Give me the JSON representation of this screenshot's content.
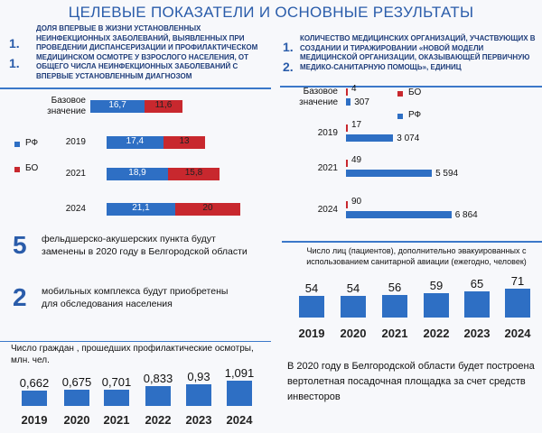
{
  "header": {
    "title": "ЦЕЛЕВЫЕ ПОКАЗАТЕЛИ И ОСНОВНЫЕ РЕЗУЛЬТАТЫ"
  },
  "chart_data": [
    {
      "type": "bar",
      "orientation": "horizontal",
      "stacked": true,
      "title": "ДОЛЯ ВПЕРВЫЕ В ЖИЗНИ УСТАНОВЛЕННЫХ НЕИНФЕКЦИОННЫХ ЗАБОЛЕВАНИЙ, ВЫЯВЛЕННЫХ ПРИ ПРОВЕДЕНИИ ДИСПАНСЕРИЗАЦИИ И ПРОФИЛАКТИЧЕСКОМ МЕДИЦИНСКОМ ОСМОТРЕ У ВЗРОСЛОГО НАСЕЛЕНИЯ, ОТ ОБЩЕГО ЧИСЛА НЕИНФЕКЦИОННЫХ ЗАБОЛЕВАНИЙ С ВПЕРВЫЕ УСТАНОВЛЕННЫМ ДИАГНОЗОМ",
      "numbers": [
        "1.",
        "1."
      ],
      "categories": [
        "Базовое значение",
        "2019",
        "2021",
        "2024"
      ],
      "series": [
        {
          "name": "РФ",
          "color": "#2e6fc4",
          "values": [
            16.7,
            17.4,
            18.9,
            21.1
          ],
          "value_labels": [
            "16,7",
            "17,4",
            "18,9",
            "21,1"
          ]
        },
        {
          "name": "БО",
          "color": "#c8282e",
          "values": [
            11.6,
            13,
            15.8,
            20
          ],
          "value_labels": [
            "11,6",
            "13",
            "15,8",
            "20"
          ]
        }
      ]
    },
    {
      "type": "bar",
      "orientation": "horizontal",
      "stacked": false,
      "title": "КОЛИЧЕСТВО МЕДИЦИНСКИХ ОРГАНИЗАЦИЙ, УЧАСТВУЮЩИХ В СОЗДАНИИ И ТИРАЖИРОВАНИИ «НОВОЙ МОДЕЛИ МЕДИЦИНСКОЙ ОРГАНИЗАЦИИ, ОКАЗЫВАЮЩЕЙ ПЕРВИЧНУЮ МЕДИКО-САНИТАРНУЮ ПОМОЩЬ», ЕДИНИЦ",
      "numbers": [
        "1.",
        "2."
      ],
      "categories": [
        "Базовое значение",
        "2019",
        "2021",
        "2024"
      ],
      "series": [
        {
          "name": "БО",
          "color": "#c8282e",
          "values": [
            4,
            17,
            49,
            90
          ]
        },
        {
          "name": "РФ",
          "color": "#2e6fc4",
          "values": [
            307,
            3074,
            5594,
            6864
          ],
          "value_labels": [
            "307",
            "3 074",
            "5 594",
            "6 864"
          ]
        }
      ]
    },
    {
      "type": "bar",
      "orientation": "vertical",
      "title": "Число граждан , прошедших профилактические осмотры, млн. чел.",
      "categories": [
        "2019",
        "2020",
        "2021",
        "2022",
        "2023",
        "2024"
      ],
      "values": [
        0.662,
        0.675,
        0.701,
        0.833,
        0.93,
        1.091
      ],
      "value_labels": [
        "0,662",
        "0,675",
        "0,701",
        "0,833",
        "0,93",
        "1,091"
      ],
      "color": "#2e6fc4"
    },
    {
      "type": "bar",
      "orientation": "vertical",
      "title": "Число лиц (пациентов), дополнительно эвакуированных с использованием санитарной авиации (ежегодно, человек)",
      "categories": [
        "2019",
        "2020",
        "2021",
        "2022",
        "2023",
        "2024"
      ],
      "values": [
        54,
        54,
        56,
        59,
        65,
        71
      ],
      "color": "#2e6fc4"
    }
  ],
  "facts": [
    {
      "number": "5",
      "text": "фельдшерско-акушерских пункта будут заменены в 2020 году в Белгородской области"
    },
    {
      "number": "2",
      "text": "мобильных комплекса будут приобретены для обследования населения"
    }
  ],
  "note": {
    "text": "В 2020 году в Белгородской области будет построена вертолетная посадочная площадка за счет средств инвесторов"
  }
}
